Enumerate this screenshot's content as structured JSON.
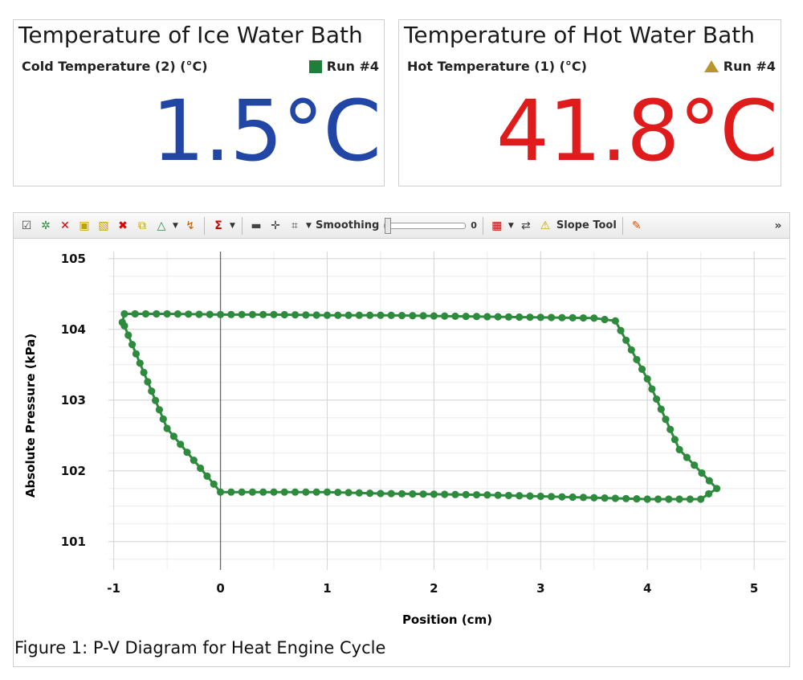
{
  "meters": [
    {
      "title": "Temperature of Ice Water Bath",
      "sensor": "Cold Temperature (2) (°C)",
      "run": "Run #4",
      "value": "1.5°C",
      "value_color": "#2146a6",
      "run_icon": "green-square-icon",
      "run_color": "#1e7f3b"
    },
    {
      "title": "Temperature of Hot Water Bath",
      "sensor": "Hot Temperature (1) (°C)",
      "run": "Run #4",
      "value": "41.8°C",
      "value_color": "#e01b1b",
      "run_icon": "gold-triangle-icon",
      "run_color": "#b8962e"
    }
  ],
  "toolbar": {
    "smoothing_label": "Smoothing",
    "smoothing_value": "0",
    "slope_tool_label": "Slope Tool",
    "more_label": "»"
  },
  "caption": "Figure 1: P-V Diagram for Heat Engine Cycle",
  "chart_data": {
    "type": "scatter",
    "title": "",
    "xlabel": "Position (cm)",
    "ylabel": "Absolute Pressure (kPa)",
    "xlim": [
      -1.05,
      5.3
    ],
    "ylim": [
      100.6,
      105.1
    ],
    "x_ticks": [
      -1,
      0,
      1,
      2,
      3,
      4,
      5
    ],
    "y_ticks": [
      101,
      102,
      103,
      104,
      105
    ],
    "grid": true,
    "series": [
      {
        "color": "#2e8b3e",
        "x": [
          -0.9,
          -0.5,
          0.0,
          0.5,
          1.0,
          1.5,
          2.0,
          2.5,
          3.0,
          3.5,
          4.0,
          4.5,
          4.65,
          4.3,
          4.0,
          3.7,
          3.5,
          3.0,
          2.5,
          2.0,
          1.5,
          1.0,
          0.5,
          0.0,
          -0.5,
          -0.9,
          -0.92
        ],
        "y": [
          104.05,
          102.6,
          101.7,
          101.7,
          101.7,
          101.68,
          101.67,
          101.66,
          101.64,
          101.62,
          101.6,
          101.6,
          101.75,
          102.3,
          103.3,
          104.12,
          104.16,
          104.17,
          104.18,
          104.19,
          104.2,
          104.2,
          104.21,
          104.21,
          104.22,
          104.22,
          104.1
        ]
      }
    ]
  }
}
